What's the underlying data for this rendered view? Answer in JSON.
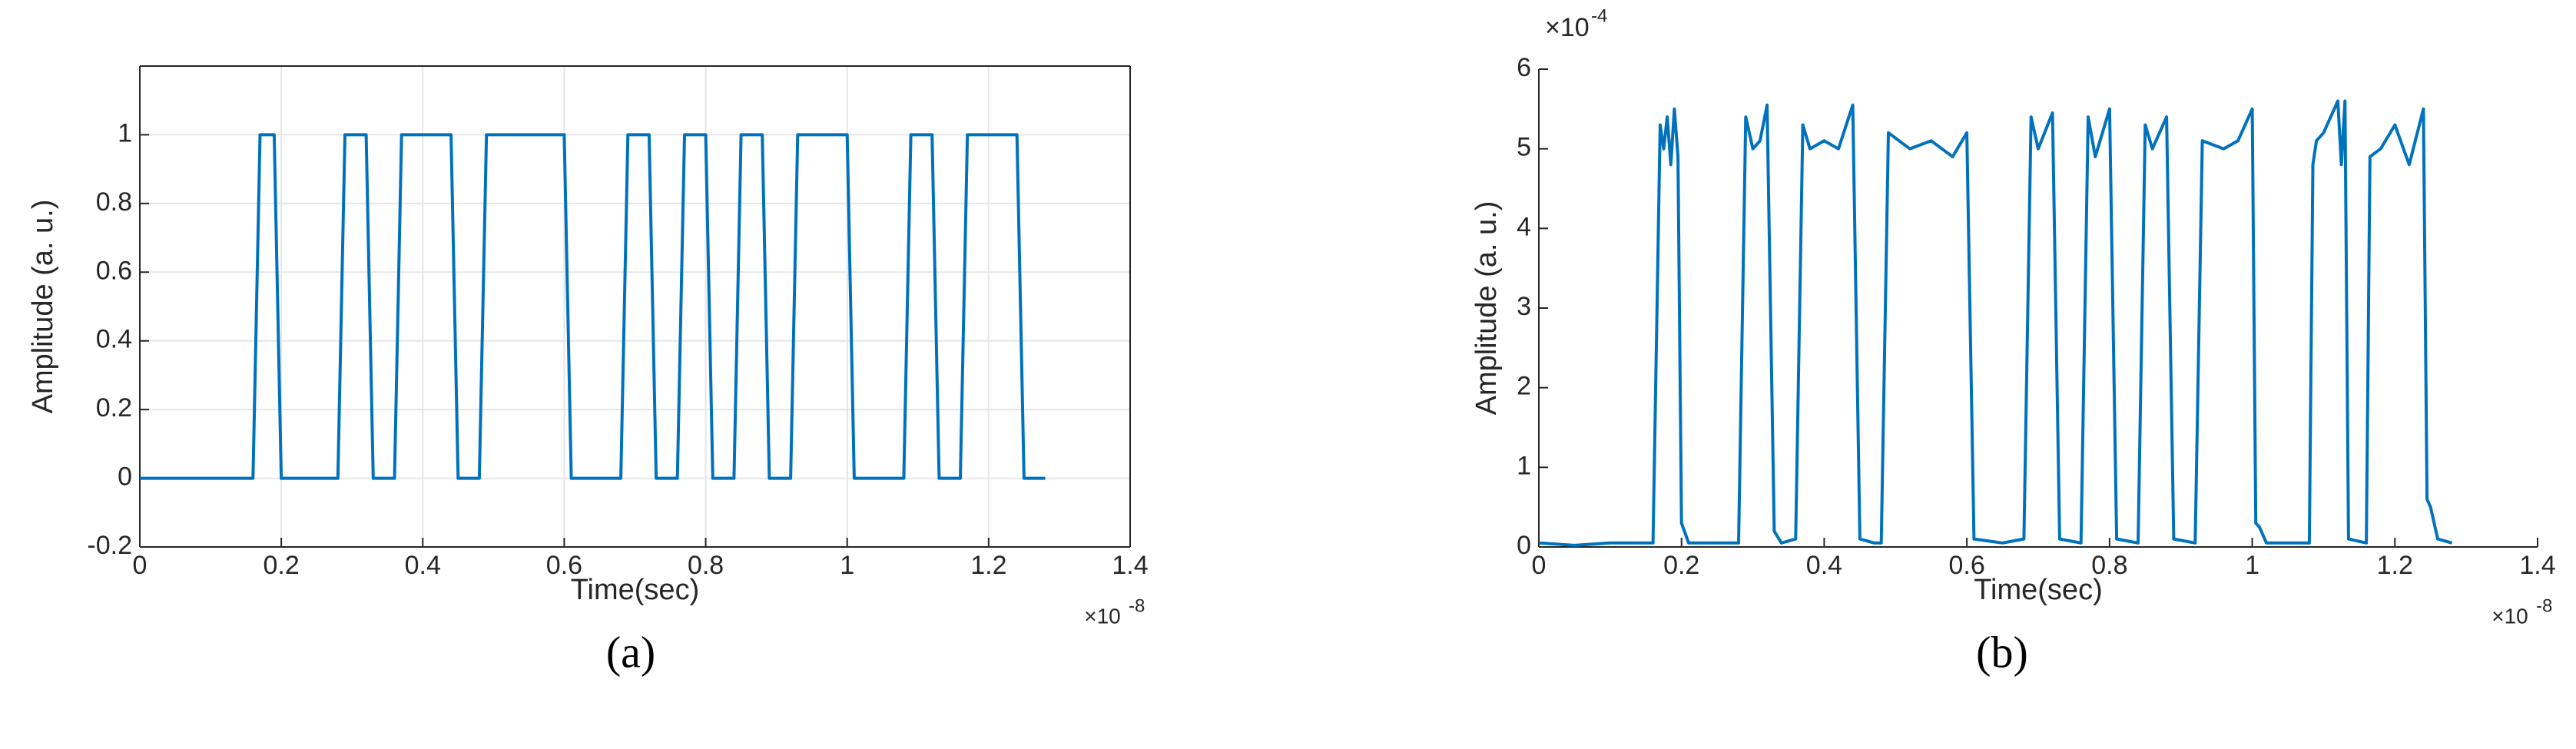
{
  "chart_data": [
    {
      "type": "line",
      "panel_label": "(a)",
      "xlabel": "Time(sec)",
      "ylabel": "Amplitude (a. u.)",
      "x_multiplier": {
        "base": "×10",
        "exponent": "-8"
      },
      "x": [
        0,
        0.16,
        0.17,
        0.19,
        0.2,
        0.28,
        0.29,
        0.32,
        0.33,
        0.36,
        0.37,
        0.44,
        0.45,
        0.48,
        0.49,
        0.6,
        0.61,
        0.68,
        0.69,
        0.72,
        0.73,
        0.76,
        0.77,
        0.8,
        0.81,
        0.84,
        0.85,
        0.88,
        0.89,
        0.92,
        0.93,
        1.0,
        1.01,
        1.08,
        1.09,
        1.12,
        1.13,
        1.16,
        1.17,
        1.24,
        1.25,
        1.28
      ],
      "values": [
        0,
        0,
        1,
        1,
        0,
        0,
        1,
        1,
        0,
        0,
        1,
        1,
        0,
        0,
        1,
        1,
        0,
        0,
        1,
        1,
        0,
        0,
        1,
        1,
        0,
        0,
        1,
        1,
        0,
        0,
        1,
        1,
        0,
        0,
        1,
        1,
        0,
        0,
        1,
        1,
        0,
        0
      ],
      "color": "#0072bd",
      "xlim": [
        0,
        1.4
      ],
      "ylim": [
        -0.2,
        1.2
      ],
      "xticks": [
        0,
        0.2,
        0.4,
        0.6,
        0.8,
        1,
        1.2,
        1.4
      ],
      "yticks": [
        -0.2,
        0,
        0.2,
        0.4,
        0.6,
        0.8,
        1
      ],
      "grid": true,
      "box": true
    },
    {
      "type": "line",
      "panel_label": "(b)",
      "xlabel": "Time(sec)",
      "ylabel": "Amplitude (a. u.)",
      "x_multiplier": {
        "base": "×10",
        "exponent": "-8"
      },
      "y_multiplier": {
        "base": "×10",
        "exponent": "-4"
      },
      "x": [
        0,
        0.05,
        0.1,
        0.16,
        0.17,
        0.175,
        0.18,
        0.185,
        0.19,
        0.195,
        0.2,
        0.21,
        0.25,
        0.28,
        0.29,
        0.3,
        0.31,
        0.32,
        0.33,
        0.34,
        0.36,
        0.37,
        0.38,
        0.4,
        0.42,
        0.44,
        0.45,
        0.47,
        0.48,
        0.49,
        0.52,
        0.55,
        0.58,
        0.6,
        0.61,
        0.65,
        0.68,
        0.69,
        0.7,
        0.72,
        0.73,
        0.76,
        0.77,
        0.78,
        0.8,
        0.81,
        0.84,
        0.85,
        0.86,
        0.88,
        0.89,
        0.92,
        0.93,
        0.96,
        0.98,
        1.0,
        1.005,
        1.01,
        1.02,
        1.05,
        1.08,
        1.085,
        1.09,
        1.1,
        1.12,
        1.125,
        1.13,
        1.135,
        1.16,
        1.165,
        1.18,
        1.2,
        1.22,
        1.24,
        1.245,
        1.25,
        1.26,
        1.28
      ],
      "values": [
        0.05,
        0.02,
        0.05,
        0.05,
        5.3,
        5.0,
        5.4,
        4.8,
        5.5,
        4.9,
        0.3,
        0.05,
        0.05,
        0.05,
        5.4,
        5.0,
        5.1,
        5.55,
        0.2,
        0.05,
        0.1,
        5.3,
        5.0,
        5.1,
        5.0,
        5.55,
        0.1,
        0.05,
        0.05,
        5.2,
        5.0,
        5.1,
        4.9,
        5.2,
        0.1,
        0.05,
        0.1,
        5.4,
        5.0,
        5.45,
        0.1,
        0.05,
        5.4,
        4.9,
        5.5,
        0.1,
        0.05,
        5.3,
        5.0,
        5.4,
        0.1,
        0.05,
        5.1,
        5.0,
        5.1,
        5.5,
        0.3,
        0.25,
        0.05,
        0.05,
        0.05,
        4.8,
        5.1,
        5.2,
        5.6,
        4.8,
        5.6,
        0.1,
        0.05,
        4.9,
        5.0,
        5.3,
        4.8,
        5.5,
        0.6,
        0.5,
        0.1,
        0.05
      ],
      "color": "#0072bd",
      "xlim": [
        0,
        1.4
      ],
      "ylim": [
        0,
        6
      ],
      "xticks": [
        0,
        0.2,
        0.4,
        0.6,
        0.8,
        1,
        1.2,
        1.4
      ],
      "yticks": [
        0,
        1,
        2,
        3,
        4,
        5,
        6
      ],
      "grid": false,
      "box": false
    }
  ]
}
